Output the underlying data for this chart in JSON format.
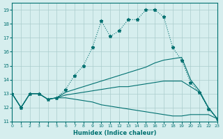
{
  "xlabel": "Humidex (Indice chaleur)",
  "ylabel": "",
  "bg_color": "#d6eeee",
  "grid_color": "#aacccc",
  "line_color": "#007070",
  "xlim": [
    0,
    23
  ],
  "ylim": [
    11,
    19.5
  ],
  "yticks": [
    11,
    12,
    13,
    14,
    15,
    16,
    17,
    18,
    19
  ],
  "xticks": [
    0,
    1,
    2,
    3,
    4,
    5,
    6,
    7,
    8,
    9,
    10,
    11,
    12,
    13,
    14,
    15,
    16,
    17,
    18,
    19,
    20,
    21,
    22,
    23
  ],
  "series": [
    {
      "x": [
        0,
        1,
        2,
        3,
        4,
        5,
        6,
        7,
        8,
        9,
        10,
        11,
        12,
        13,
        14,
        15,
        16,
        17,
        18,
        19,
        20,
        21,
        22,
        23
      ],
      "y": [
        13.0,
        12.0,
        13.0,
        13.0,
        12.6,
        12.7,
        13.3,
        14.3,
        15.0,
        16.3,
        18.2,
        17.1,
        17.5,
        18.3,
        18.3,
        19.0,
        19.0,
        18.5,
        16.3,
        15.4,
        13.8,
        13.1,
        11.9,
        11.2
      ],
      "marker": "*",
      "linestyle": "dotted"
    },
    {
      "x": [
        0,
        1,
        2,
        3,
        4,
        5,
        6,
        7,
        8,
        9,
        10,
        11,
        12,
        13,
        14,
        15,
        16,
        17,
        18,
        19,
        20,
        21,
        22,
        23
      ],
      "y": [
        13.0,
        12.0,
        13.0,
        13.0,
        12.6,
        12.7,
        13.1,
        13.3,
        13.5,
        13.7,
        13.9,
        14.1,
        14.3,
        14.5,
        14.7,
        14.9,
        15.2,
        15.4,
        15.5,
        15.6,
        14.0,
        13.2,
        12.0,
        11.2
      ],
      "marker": null,
      "linestyle": "solid"
    },
    {
      "x": [
        0,
        1,
        2,
        3,
        4,
        5,
        6,
        7,
        8,
        9,
        10,
        11,
        12,
        13,
        14,
        15,
        16,
        17,
        18,
        19,
        20,
        21,
        22,
        23
      ],
      "y": [
        13.0,
        12.0,
        13.0,
        13.0,
        12.6,
        12.7,
        12.9,
        13.0,
        13.1,
        13.2,
        13.3,
        13.4,
        13.5,
        13.5,
        13.6,
        13.7,
        13.8,
        13.9,
        13.9,
        13.9,
        13.5,
        13.1,
        12.0,
        11.2
      ],
      "marker": null,
      "linestyle": "solid"
    },
    {
      "x": [
        0,
        1,
        2,
        3,
        4,
        5,
        6,
        7,
        8,
        9,
        10,
        11,
        12,
        13,
        14,
        15,
        16,
        17,
        18,
        19,
        20,
        21,
        22,
        23
      ],
      "y": [
        13.0,
        12.0,
        13.0,
        13.0,
        12.6,
        12.7,
        12.7,
        12.6,
        12.5,
        12.4,
        12.2,
        12.1,
        12.0,
        11.9,
        11.8,
        11.7,
        11.6,
        11.5,
        11.4,
        11.4,
        11.5,
        11.5,
        11.5,
        11.2
      ],
      "marker": null,
      "linestyle": "solid"
    }
  ]
}
